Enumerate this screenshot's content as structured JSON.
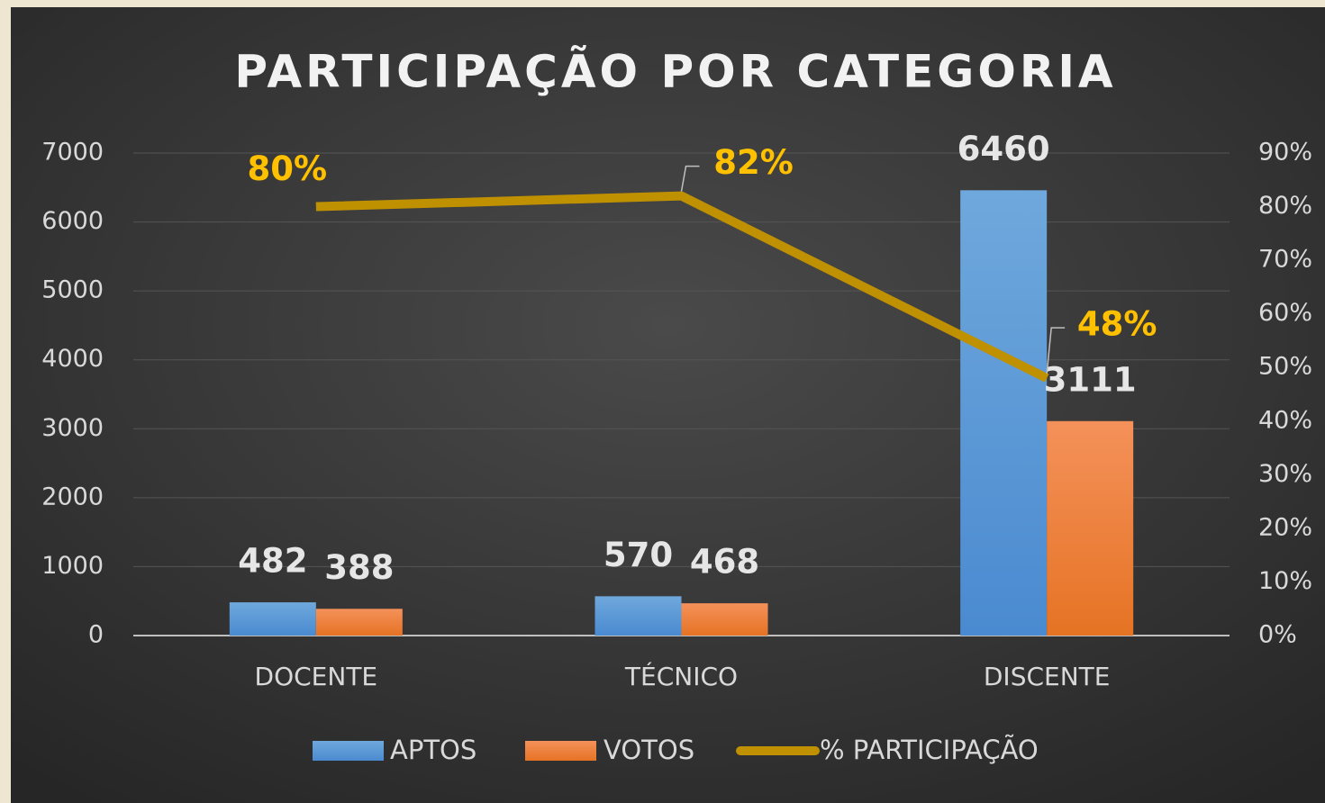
{
  "chart_data": {
    "type": "bar",
    "title": "PARTICIPAÇÃO POR CATEGORIA",
    "categories": [
      "DOCENTE",
      "TÉCNICO",
      "DISCENTE"
    ],
    "series": [
      {
        "name": "APTOS",
        "type": "bar",
        "color": "#5b9bd5",
        "values": [
          482,
          570,
          6460
        ]
      },
      {
        "name": "VOTOS",
        "type": "bar",
        "color": "#ed7d31",
        "values": [
          388,
          468,
          3111
        ]
      },
      {
        "name": "% PARTICIPAÇÃO",
        "type": "line",
        "axis": "y2",
        "color": "#bf9000",
        "values": [
          80,
          82,
          48
        ],
        "value_labels": [
          "80%",
          "82%",
          "48%"
        ]
      }
    ],
    "ylim": [
      0,
      7000
    ],
    "yticks": [
      0,
      1000,
      2000,
      3000,
      4000,
      5000,
      6000,
      7000
    ],
    "y2lim": [
      0,
      90
    ],
    "y2ticks": [
      {
        "value": 0,
        "label": "0%"
      },
      {
        "value": 10,
        "label": "10%"
      },
      {
        "value": 20,
        "label": "20%"
      },
      {
        "value": 30,
        "label": "30%"
      },
      {
        "value": 40,
        "label": "40%"
      },
      {
        "value": 50,
        "label": "50%"
      },
      {
        "value": 60,
        "label": "60%"
      },
      {
        "value": 70,
        "label": "70%"
      },
      {
        "value": 80,
        "label": "80%"
      },
      {
        "value": 90,
        "label": "90%"
      }
    ],
    "grid": true,
    "legend": "bottom"
  }
}
